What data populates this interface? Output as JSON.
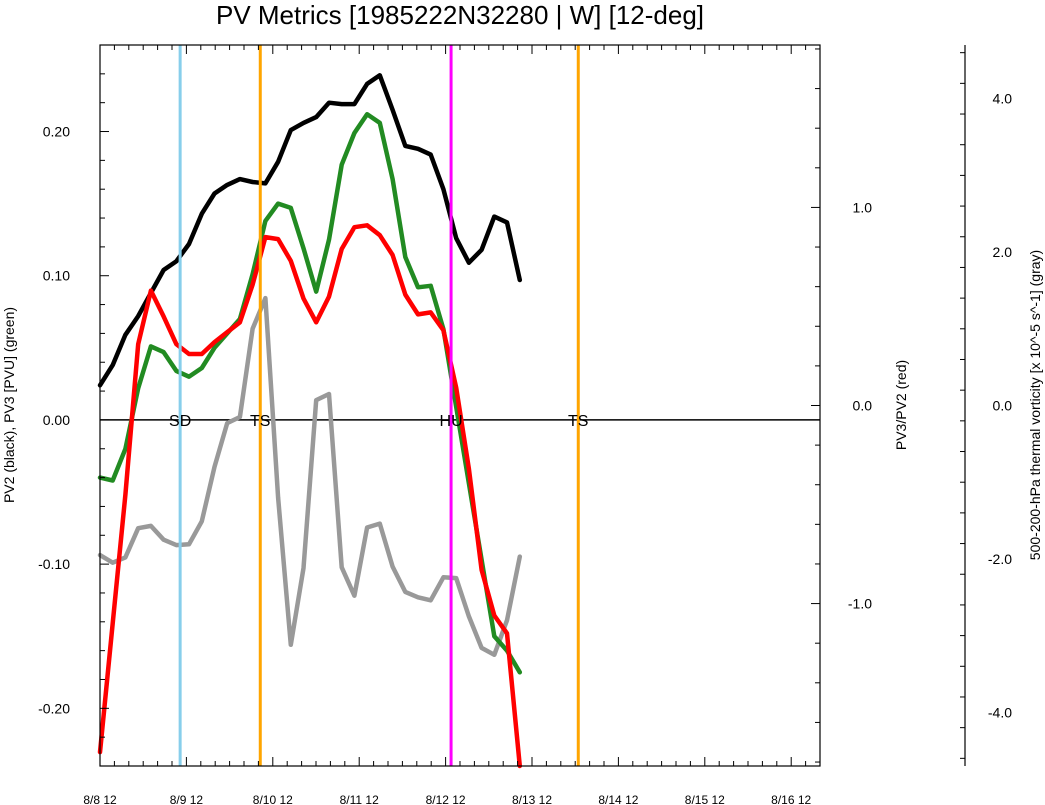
{
  "chart_data": {
    "type": "line",
    "title": "PV Metrics [1985222N32280 | W] [12-deg]",
    "xlabel": "",
    "x_tick_labels": [
      "8/8 12",
      "8/9 12",
      "8/10 12",
      "8/11 12",
      "8/12 12",
      "8/13 12",
      "8/14 12",
      "8/15 12",
      "8/16 12"
    ],
    "x_range": [
      0,
      50
    ],
    "left_axis": {
      "label": "PV2 (black), PV3 [PVU] (green)",
      "ylim": [
        -0.24,
        0.26
      ],
      "ticks": [
        "-0.20",
        "-0.10",
        "0.00",
        "0.10",
        "0.20"
      ],
      "tick_values": [
        -0.2,
        -0.1,
        0,
        0.1,
        0.2
      ]
    },
    "right_axis": {
      "label": "PV3/PV2 (red)",
      "ylim": [
        -1.82,
        1.82
      ],
      "ticks": [
        "-1.0",
        "0.0",
        "1.0"
      ],
      "tick_values": [
        -1,
        0,
        1
      ]
    },
    "far_right_axis": {
      "label": "500-200-hPa thermal vorticity [x 10^-5 s^-1] (gray)",
      "ylim": [
        -4.7,
        4.7
      ],
      "ticks": [
        "-4.0",
        "-2.0",
        "0.0",
        "2.0",
        "4.0"
      ],
      "tick_values": [
        -4,
        -2,
        0,
        2,
        4
      ]
    },
    "series": [
      {
        "axis": "left",
        "color": "#000000",
        "values": [
          0.024,
          0.038,
          0.059,
          0.072,
          0.088,
          0.104,
          0.11,
          0.122,
          0.143,
          0.157,
          0.163,
          0.167,
          0.165,
          0.164,
          0.179,
          0.201,
          0.206,
          0.21,
          0.22,
          0.219,
          0.219,
          0.233,
          0.239,
          0.215,
          0.19,
          0.188,
          0.184,
          0.16,
          0.126,
          0.109,
          0.118,
          0.141,
          0.137,
          0.097
        ]
      },
      {
        "axis": "left",
        "color": "#228B22",
        "values": [
          -0.04,
          -0.042,
          -0.02,
          0.022,
          0.051,
          0.047,
          0.034,
          0.03,
          0.036,
          0.05,
          0.06,
          0.07,
          0.101,
          0.138,
          0.15,
          0.147,
          0.119,
          0.089,
          0.125,
          0.177,
          0.199,
          0.212,
          0.206,
          0.167,
          0.113,
          0.092,
          0.093,
          0.063,
          0.009,
          -0.044,
          -0.097,
          -0.15,
          -0.16,
          -0.175
        ]
      },
      {
        "axis": "right",
        "color": "#ff0000",
        "values": [
          -1.75,
          -1.1,
          -0.45,
          0.31,
          0.58,
          0.45,
          0.31,
          0.26,
          0.26,
          0.32,
          0.37,
          0.42,
          0.61,
          0.85,
          0.84,
          0.73,
          0.54,
          0.42,
          0.55,
          0.79,
          0.9,
          0.91,
          0.86,
          0.76,
          0.56,
          0.46,
          0.47,
          0.38,
          0.09,
          -0.32,
          -0.83,
          -1.06,
          -1.15,
          -1.82
        ]
      },
      {
        "axis": "far_right",
        "color": "#999999",
        "values": [
          -1.95,
          -2.05,
          -1.98,
          -1.6,
          -1.57,
          -1.75,
          -1.82,
          -1.81,
          -1.51,
          -0.8,
          -0.23,
          -0.15,
          1.0,
          1.4,
          -1.2,
          -3.12,
          -2.12,
          0.07,
          0.15,
          -2.11,
          -2.48,
          -1.59,
          -1.54,
          -2.1,
          -2.43,
          -2.5,
          -2.54,
          -2.24,
          -2.25,
          -2.75,
          -3.16,
          -3.25,
          -2.8,
          -1.97
        ]
      }
    ],
    "vertical_markers": [
      {
        "x": 6.3,
        "label": "SD",
        "color": "#87CEEB"
      },
      {
        "x": 12.6,
        "label": "TS",
        "color": "#FFA500"
      },
      {
        "x": 27.6,
        "label": "HU",
        "color": "#FF00FF"
      },
      {
        "x": 37.6,
        "label": "TS",
        "color": "#FFA500"
      }
    ],
    "zero_line": true,
    "grid": false,
    "legend": "none"
  }
}
